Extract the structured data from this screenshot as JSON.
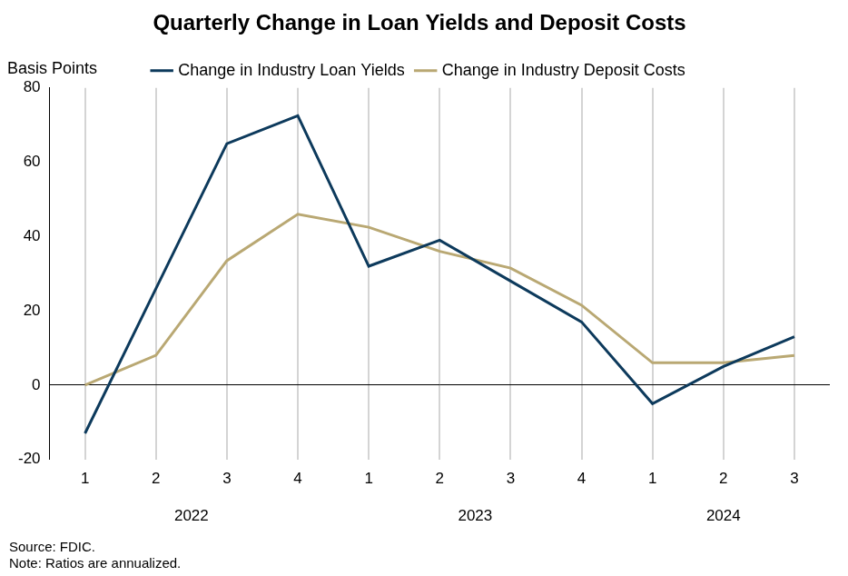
{
  "chart_data": {
    "type": "line",
    "title": "Quarterly Change in Loan Yields and Deposit Costs",
    "y_label": "Basis Points",
    "notes": [
      "Source: FDIC.",
      "Note: Ratios are annualized."
    ],
    "categories": [
      "1",
      "2",
      "3",
      "4",
      "1",
      "2",
      "3",
      "4",
      "1",
      "2",
      "3"
    ],
    "category_groups": [
      {
        "label": "2022",
        "count": 4
      },
      {
        "label": "2023",
        "count": 4
      },
      {
        "label": "2024",
        "count": 3
      }
    ],
    "series": [
      {
        "name": "Change in Industry Loan Yields",
        "color": "#0d3a5c",
        "values": [
          -13,
          26,
          65,
          72.5,
          32,
          39,
          28,
          17,
          -5,
          5,
          13
        ]
      },
      {
        "name": "Change in Industry Deposit Costs",
        "color": "#b9a873",
        "values": [
          0,
          8,
          33.5,
          46,
          42.5,
          36,
          31.5,
          21.5,
          6,
          6,
          8
        ]
      }
    ],
    "ylim": [
      -20,
      80
    ],
    "yticks": [
      -20,
      0,
      20,
      40,
      60,
      80
    ],
    "grid": "x",
    "legend": "top"
  }
}
